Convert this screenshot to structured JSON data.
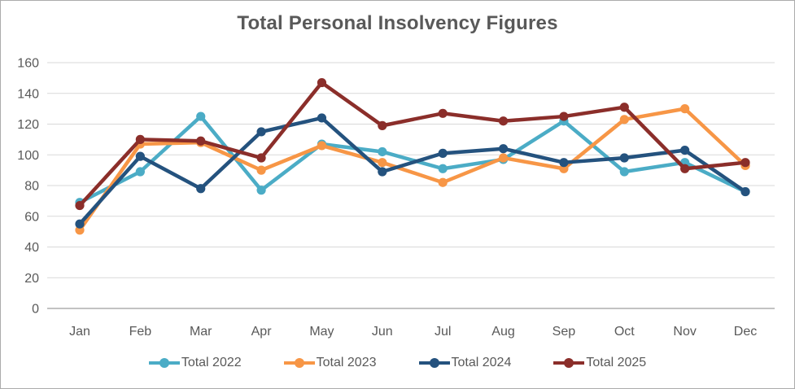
{
  "chart_data": {
    "type": "line",
    "title": "Total Personal Insolvency Figures",
    "xlabel": "",
    "ylabel": "",
    "categories": [
      "Jan",
      "Feb",
      "Mar",
      "Apr",
      "May",
      "Jun",
      "Jul",
      "Aug",
      "Sep",
      "Oct",
      "Nov",
      "Dec"
    ],
    "series": [
      {
        "name": "Total 2022",
        "color": "#4BACC6",
        "values": [
          69,
          89,
          125,
          77,
          107,
          102,
          91,
          97,
          122,
          89,
          95,
          76
        ]
      },
      {
        "name": "Total 2023",
        "color": "#F79646",
        "values": [
          51,
          107,
          108,
          90,
          106,
          95,
          82,
          98,
          91,
          123,
          130,
          93
        ]
      },
      {
        "name": "Total 2024",
        "color": "#24527E",
        "values": [
          55,
          99,
          78,
          115,
          124,
          89,
          101,
          104,
          95,
          98,
          103,
          76
        ]
      },
      {
        "name": "Total 2025",
        "color": "#8B2E2A",
        "values": [
          67,
          110,
          109,
          98,
          147,
          119,
          127,
          122,
          125,
          131,
          91,
          95
        ]
      }
    ],
    "ylim": [
      0,
      160
    ],
    "ytick_step": 20,
    "yticks": [
      0,
      20,
      40,
      60,
      80,
      100,
      120,
      140,
      160
    ],
    "grid": true,
    "legend_position": "bottom"
  },
  "colors": {
    "title_text": "#595959",
    "axis_text": "#595959",
    "gridline": "#D9D9D9",
    "axis_line": "#ADADAD",
    "frame_border": "#ABABAB",
    "background": "#FFFFFF"
  }
}
